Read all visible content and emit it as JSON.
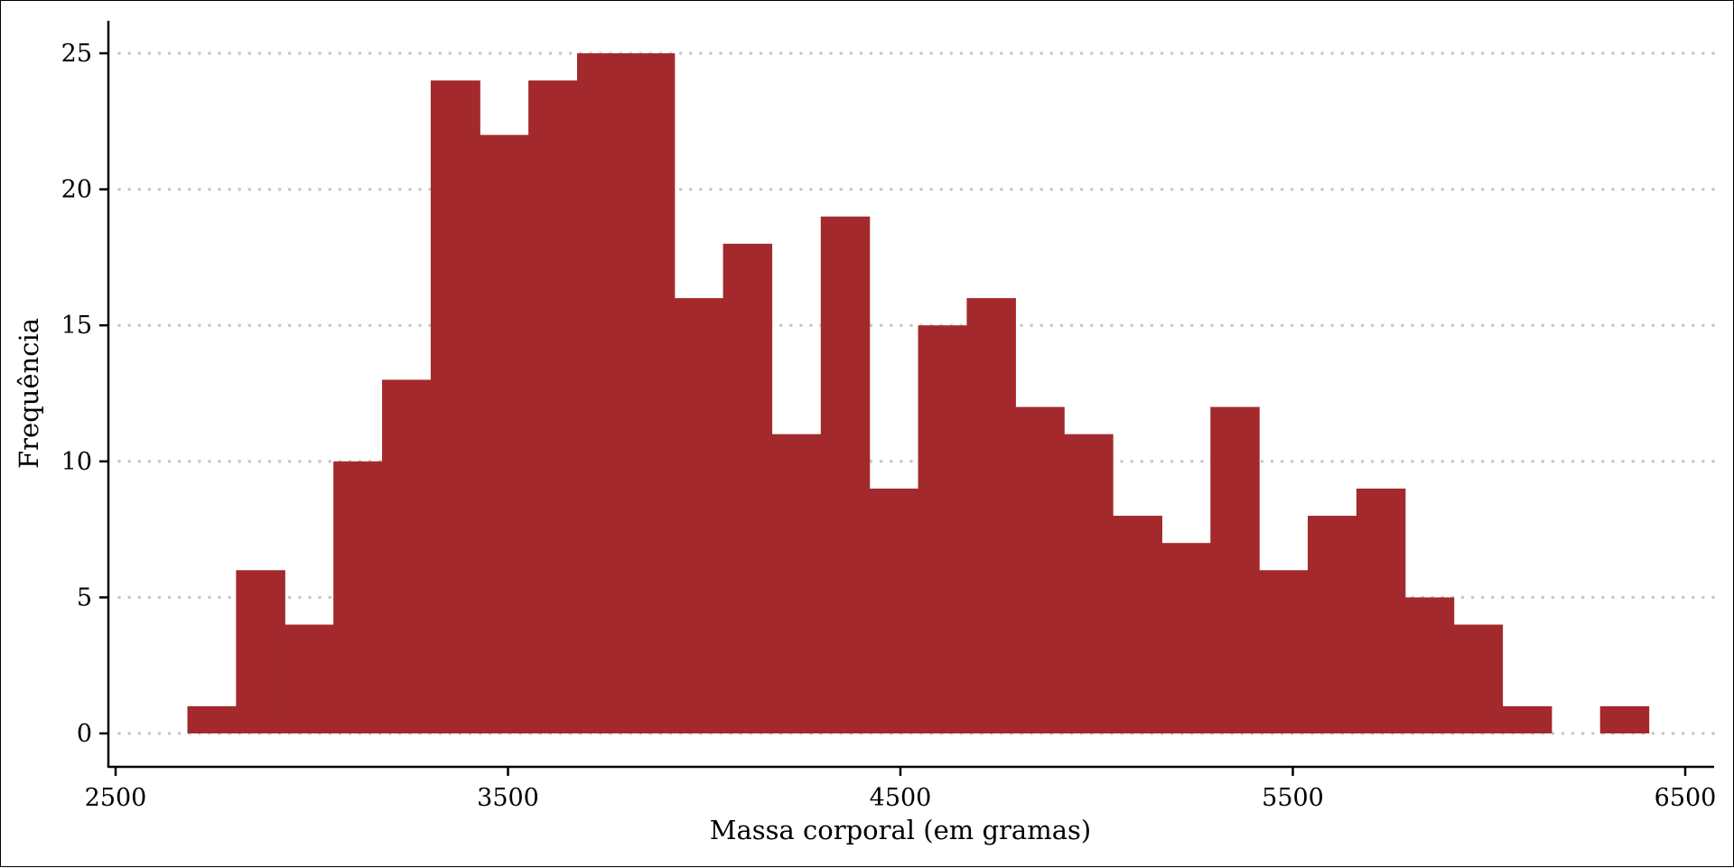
{
  "chart_data": {
    "type": "histogram",
    "xlabel": "Massa corporal (em gramas)",
    "ylabel": "Frequência",
    "xlim": [
      2500,
      6500
    ],
    "ylim": [
      0,
      25
    ],
    "x_ticks": [
      2500,
      3500,
      4500,
      5500,
      6500
    ],
    "y_ticks": [
      0,
      5,
      10,
      15,
      20,
      25
    ],
    "grid": "horizontal-dotted",
    "colors": {
      "bar": "#a3292c",
      "grid": "#c8c8c8",
      "axis": "#000000"
    },
    "bins": [
      {
        "x0": 2683,
        "x1": 2807,
        "count": 1
      },
      {
        "x0": 2807,
        "x1": 2931,
        "count": 6
      },
      {
        "x0": 2931,
        "x1": 3055,
        "count": 4
      },
      {
        "x0": 3055,
        "x1": 3179,
        "count": 10
      },
      {
        "x0": 3179,
        "x1": 3303,
        "count": 13
      },
      {
        "x0": 3303,
        "x1": 3428,
        "count": 24
      },
      {
        "x0": 3428,
        "x1": 3552,
        "count": 22
      },
      {
        "x0": 3552,
        "x1": 3676,
        "count": 24
      },
      {
        "x0": 3676,
        "x1": 3800,
        "count": 25
      },
      {
        "x0": 3800,
        "x1": 3924,
        "count": 25
      },
      {
        "x0": 3924,
        "x1": 4048,
        "count": 16
      },
      {
        "x0": 4048,
        "x1": 4172,
        "count": 18
      },
      {
        "x0": 4172,
        "x1": 4297,
        "count": 11
      },
      {
        "x0": 4297,
        "x1": 4421,
        "count": 19
      },
      {
        "x0": 4421,
        "x1": 4545,
        "count": 9
      },
      {
        "x0": 4545,
        "x1": 4669,
        "count": 15
      },
      {
        "x0": 4669,
        "x1": 4793,
        "count": 16
      },
      {
        "x0": 4793,
        "x1": 4917,
        "count": 12
      },
      {
        "x0": 4917,
        "x1": 5041,
        "count": 11
      },
      {
        "x0": 5041,
        "x1": 5166,
        "count": 8
      },
      {
        "x0": 5166,
        "x1": 5290,
        "count": 7
      },
      {
        "x0": 5290,
        "x1": 5414,
        "count": 12
      },
      {
        "x0": 5414,
        "x1": 5538,
        "count": 6
      },
      {
        "x0": 5538,
        "x1": 5662,
        "count": 8
      },
      {
        "x0": 5662,
        "x1": 5786,
        "count": 9
      },
      {
        "x0": 5786,
        "x1": 5910,
        "count": 5
      },
      {
        "x0": 5910,
        "x1": 6034,
        "count": 4
      },
      {
        "x0": 6034,
        "x1": 6159,
        "count": 1
      },
      {
        "x0": 6159,
        "x1": 6283,
        "count": 0
      },
      {
        "x0": 6283,
        "x1": 6407,
        "count": 1
      }
    ]
  }
}
